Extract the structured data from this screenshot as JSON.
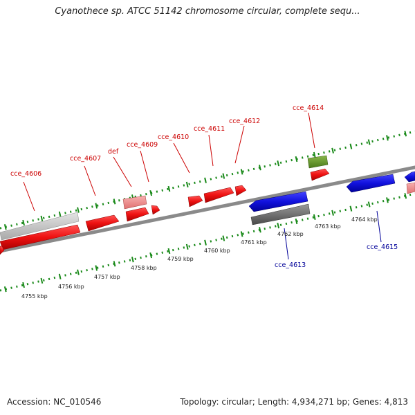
{
  "title": "Cyanothece sp. ATCC 51142 chromosome circular, complete sequ...",
  "footer": {
    "accession": "Accession: NC_010546",
    "topology": "Topology: circular; Length: 4,934,271 bp; Genes: 4,813"
  },
  "colors": {
    "gene_plus": "#ee1111",
    "gene_plus_light": "#f08888",
    "gene_minus": "#1111dd",
    "rna": "#6a9a2a",
    "pseudo_dark": "#707070",
    "pseudo_light": "#c8c8c8",
    "backbone": "#8a8a8a",
    "ticks": "#1a8a1a",
    "label_plus": "#cc0000",
    "label_minus": "#000099"
  },
  "scale_labels": [
    "4755 kbp",
    "4756 kbp",
    "4757 kbp",
    "4758 kbp",
    "4759 kbp",
    "4760 kbp",
    "4761 kbp",
    "4762 kbp",
    "4763 kbp",
    "4764 kbp"
  ],
  "gene_labels": [
    {
      "text": "cce_4606",
      "strand": "plus"
    },
    {
      "text": "cce_4607",
      "strand": "plus"
    },
    {
      "text": "def",
      "strand": "plus"
    },
    {
      "text": "cce_4609",
      "strand": "plus"
    },
    {
      "text": "cce_4610",
      "strand": "plus"
    },
    {
      "text": "cce_4611",
      "strand": "plus"
    },
    {
      "text": "cce_4612",
      "strand": "plus"
    },
    {
      "text": "cce_4614",
      "strand": "plus"
    },
    {
      "text": "cce_4613",
      "strand": "minus"
    },
    {
      "text": "cce_4615",
      "strand": "minus"
    }
  ]
}
